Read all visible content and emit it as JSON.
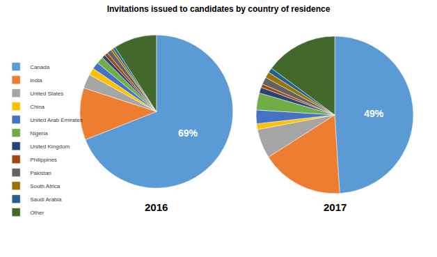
{
  "chart_data": {
    "type": "pie",
    "title": "Invitations issued to candidates by country of residence",
    "categories": [
      "Canada",
      "India",
      "United States",
      "China",
      "United Arab Emirates",
      "Nigeria",
      "United Kingdom",
      "Philippines",
      "Pakistan",
      "South Africa",
      "Saudi Arabia",
      "Other"
    ],
    "colors": [
      "#5B9BD5",
      "#ED7D31",
      "#A5A5A5",
      "#FFC000",
      "#4472C4",
      "#70AD47",
      "#264478",
      "#9E480E",
      "#636363",
      "#997300",
      "#255E91",
      "#43682B"
    ],
    "legend": "left",
    "series": [
      {
        "name": "2016",
        "values": [
          69,
          11,
          3,
          1.5,
          1.5,
          1.5,
          0.7,
          0.7,
          1,
          0.5,
          0.5,
          9.1
        ],
        "value_labels": [
          "69%",
          null,
          null,
          null,
          null,
          null,
          null,
          null,
          null,
          null,
          null,
          null
        ]
      },
      {
        "name": "2017",
        "values": [
          49,
          17,
          6,
          1.2,
          2.8,
          3.5,
          1.2,
          0.7,
          1.5,
          1.2,
          1,
          14.9
        ],
        "value_labels": [
          "49%",
          null,
          null,
          null,
          null,
          null,
          null,
          null,
          null,
          null,
          null,
          null
        ]
      }
    ]
  }
}
